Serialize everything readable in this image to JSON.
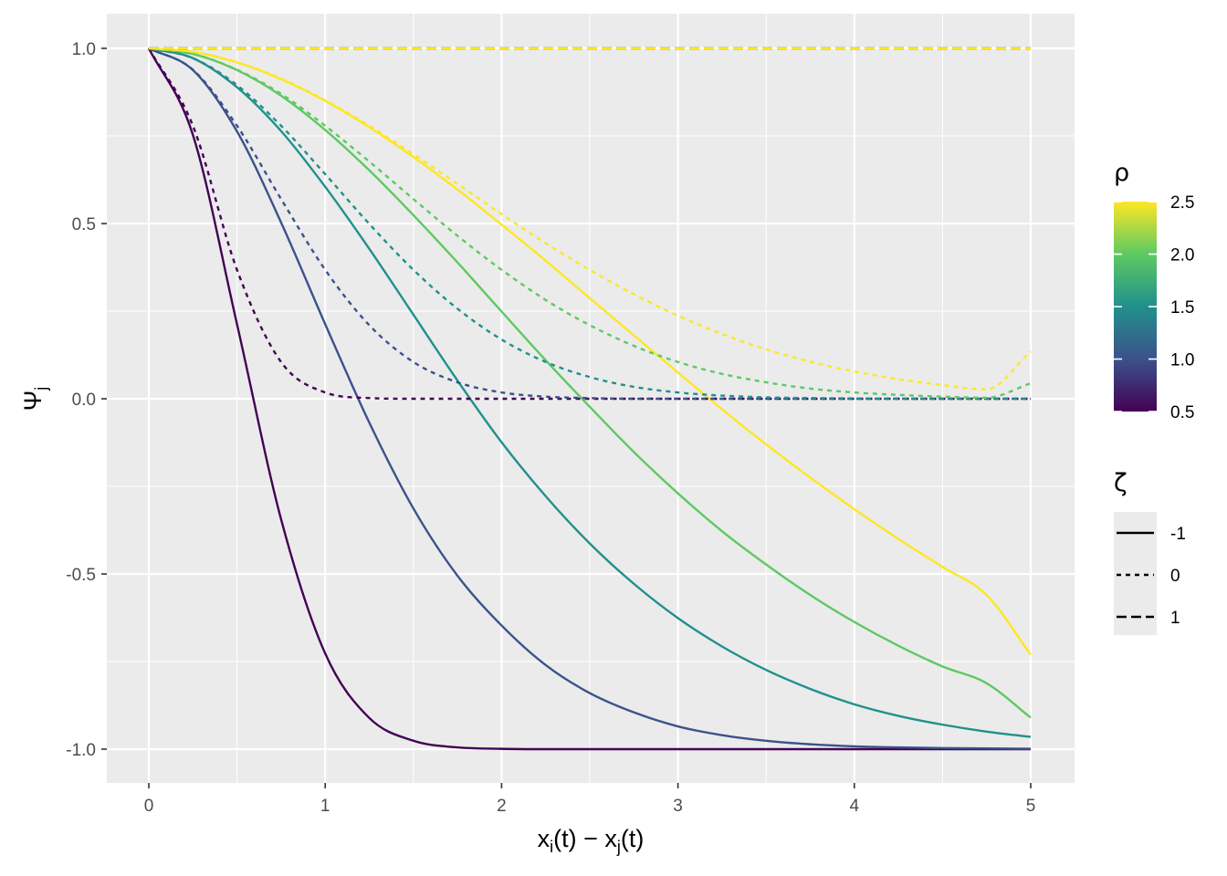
{
  "chart_data": {
    "type": "line",
    "xlabel": {
      "base1": "x",
      "sub1": "i",
      "mid": "(t) − x",
      "sub2": "j",
      "end": "(t)"
    },
    "ylabel": {
      "base": "Ψ",
      "sub": "j"
    },
    "xlim": [
      0,
      5
    ],
    "ylim": [
      -1,
      1
    ],
    "x_ticks": [
      0,
      1,
      2,
      3,
      4,
      5
    ],
    "y_ticks": [
      -1.0,
      -0.5,
      0.0,
      0.5,
      1.0
    ],
    "x_tick_labels": [
      "0",
      "1",
      "2",
      "3",
      "4",
      "5"
    ],
    "y_tick_labels": [
      "-1.0",
      "-0.5",
      "0.0",
      "0.5",
      "1.0"
    ],
    "grid": true,
    "x": [
      0,
      0.25,
      0.5,
      0.75,
      1,
      1.25,
      1.5,
      1.75,
      2,
      2.25,
      2.5,
      2.75,
      3,
      3.25,
      3.5,
      3.75,
      4,
      4.25,
      4.5,
      4.75,
      5
    ],
    "series": [
      {
        "rho": 0.5,
        "zeta": -1,
        "color": "#440154",
        "values": [
          1.0,
          0.753,
          0.213,
          -0.344,
          -0.727,
          -0.911,
          -0.976,
          -0.995,
          -0.999,
          -1.0,
          -1.0,
          -1.0,
          -1.0,
          -1.0,
          -1.0,
          -1.0,
          -1.0,
          -1.0,
          -1.0,
          -1.0,
          -1.0
        ]
      },
      {
        "rho": 1.0,
        "zeta": -1,
        "color": "#3b528b",
        "values": [
          1.0,
          0.938,
          0.763,
          0.503,
          0.213,
          -0.068,
          -0.313,
          -0.505,
          -0.647,
          -0.76,
          -0.84,
          -0.895,
          -0.935,
          -0.96,
          -0.976,
          -0.986,
          -0.992,
          -0.995,
          -0.997,
          -0.998,
          -0.999
        ]
      },
      {
        "rho": 1.5,
        "zeta": -1,
        "color": "#21908c",
        "values": [
          1.0,
          0.972,
          0.889,
          0.764,
          0.605,
          0.428,
          0.24,
          0.052,
          -0.124,
          -0.278,
          -0.413,
          -0.528,
          -0.626,
          -0.707,
          -0.774,
          -0.828,
          -0.872,
          -0.905,
          -0.93,
          -0.95,
          -0.965
        ]
      },
      {
        "rho": 2.0,
        "zeta": -1,
        "color": "#5ec962",
        "values": [
          1.0,
          0.984,
          0.938,
          0.865,
          0.767,
          0.652,
          0.524,
          0.389,
          0.249,
          0.11,
          -0.023,
          -0.152,
          -0.27,
          -0.378,
          -0.473,
          -0.56,
          -0.637,
          -0.705,
          -0.764,
          -0.812,
          -0.91
        ]
      },
      {
        "rho": 2.5,
        "zeta": -1,
        "color": "#fde725",
        "values": [
          1.0,
          0.99,
          0.96,
          0.912,
          0.85,
          0.775,
          0.69,
          0.597,
          0.497,
          0.394,
          0.287,
          0.181,
          0.075,
          -0.03,
          -0.13,
          -0.225,
          -0.315,
          -0.4,
          -0.48,
          -0.56,
          -0.73
        ]
      },
      {
        "rho": 0.5,
        "zeta": 0,
        "color": "#440154",
        "values": [
          1.0,
          0.779,
          0.368,
          0.105,
          0.018,
          0.002,
          0.0,
          0.0,
          0.0,
          0.0,
          0.0,
          0.0,
          0.0,
          0.0,
          0.0,
          0.0,
          0.0,
          0.0,
          0.0,
          0.0,
          0.0
        ]
      },
      {
        "rho": 1.0,
        "zeta": 0,
        "color": "#3b528b",
        "values": [
          1.0,
          0.939,
          0.779,
          0.57,
          0.368,
          0.21,
          0.105,
          0.047,
          0.018,
          0.006,
          0.002,
          0.0,
          0.0,
          0.0,
          0.0,
          0.0,
          0.0,
          0.0,
          0.0,
          0.0,
          0.0
        ]
      },
      {
        "rho": 1.5,
        "zeta": 0,
        "color": "#21908c",
        "values": [
          1.0,
          0.972,
          0.895,
          0.779,
          0.641,
          0.499,
          0.368,
          0.257,
          0.169,
          0.105,
          0.062,
          0.034,
          0.018,
          0.009,
          0.004,
          0.002,
          0.001,
          0.0,
          0.0,
          0.0,
          0.0
        ]
      },
      {
        "rho": 2.0,
        "zeta": 0,
        "color": "#5ec962",
        "values": [
          1.0,
          0.984,
          0.939,
          0.87,
          0.779,
          0.677,
          0.57,
          0.465,
          0.368,
          0.282,
          0.21,
          0.151,
          0.105,
          0.071,
          0.047,
          0.029,
          0.018,
          0.011,
          0.006,
          0.003,
          0.044
        ]
      },
      {
        "rho": 2.5,
        "zeta": 0,
        "color": "#fde725",
        "values": [
          1.0,
          0.99,
          0.96,
          0.914,
          0.852,
          0.779,
          0.698,
          0.613,
          0.527,
          0.444,
          0.368,
          0.298,
          0.237,
          0.185,
          0.141,
          0.106,
          0.078,
          0.056,
          0.039,
          0.027,
          0.135
        ]
      },
      {
        "rho": 0.5,
        "zeta": 1,
        "color": "#440154",
        "values": [
          1,
          1,
          1,
          1,
          1,
          1,
          1,
          1,
          1,
          1,
          1,
          1,
          1,
          1,
          1,
          1,
          1,
          1,
          1,
          1,
          1
        ]
      },
      {
        "rho": 1.0,
        "zeta": 1,
        "color": "#3b528b",
        "values": [
          1,
          1,
          1,
          1,
          1,
          1,
          1,
          1,
          1,
          1,
          1,
          1,
          1,
          1,
          1,
          1,
          1,
          1,
          1,
          1,
          1
        ]
      },
      {
        "rho": 1.5,
        "zeta": 1,
        "color": "#21908c",
        "values": [
          1,
          1,
          1,
          1,
          1,
          1,
          1,
          1,
          1,
          1,
          1,
          1,
          1,
          1,
          1,
          1,
          1,
          1,
          1,
          1,
          1
        ]
      },
      {
        "rho": 2.0,
        "zeta": 1,
        "color": "#5ec962",
        "values": [
          1,
          1,
          1,
          1,
          1,
          1,
          1,
          1,
          1,
          1,
          1,
          1,
          1,
          1,
          1,
          1,
          1,
          1,
          1,
          1,
          1
        ]
      },
      {
        "rho": 2.5,
        "zeta": 1,
        "color": "#fde725",
        "values": [
          1,
          1,
          1,
          1,
          1,
          1,
          1,
          1,
          1,
          1,
          1,
          1,
          1,
          1,
          1,
          1,
          1,
          1,
          1,
          1,
          1
        ]
      }
    ],
    "legend_color": {
      "title": "ρ",
      "placement": "right",
      "range": [
        0.5,
        2.5
      ],
      "tick_labels": [
        "2.5",
        "2.0",
        "1.5",
        "1.0",
        "0.5"
      ],
      "tick_values": [
        2.5,
        2.0,
        1.5,
        1.0,
        0.5
      ],
      "gradient": [
        "#440154",
        "#3b528b",
        "#21908c",
        "#5ec962",
        "#fde725"
      ]
    },
    "legend_linetype": {
      "title": "ζ",
      "placement": "right",
      "entries": [
        {
          "label": "-1",
          "dash": "solid"
        },
        {
          "label": "0",
          "dash": "dotted"
        },
        {
          "label": "1",
          "dash": "dashed"
        }
      ]
    },
    "colors": {
      "panel": "#ebebeb",
      "grid": "#ffffff",
      "axis_text": "#4d4d4d"
    }
  }
}
